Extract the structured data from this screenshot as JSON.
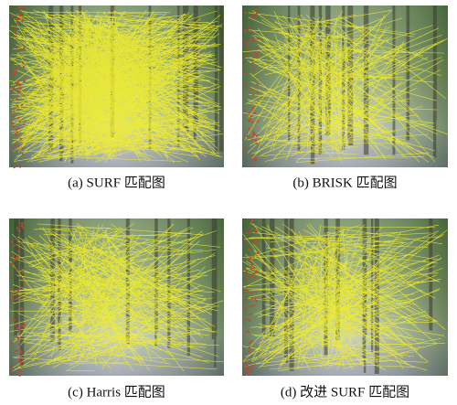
{
  "figure": {
    "panels": [
      {
        "caption": "(a) SURF 匹配图"
      },
      {
        "caption": "(b) BRISK 匹配图"
      },
      {
        "caption": "(c) Harris 匹配图"
      },
      {
        "caption": "(d) 改进 SURF 匹配图"
      }
    ]
  }
}
